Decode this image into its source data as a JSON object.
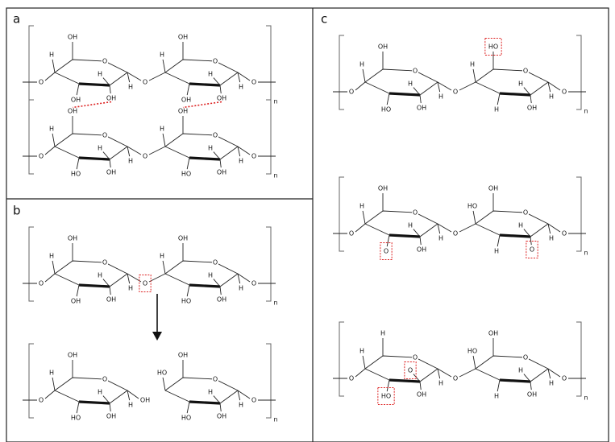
{
  "panels": [
    {
      "label": "a",
      "chains": [
        {
          "start": "O",
          "rings": [
            [
              "OH",
              "O",
              "H",
              "OH",
              "H",
              "OH",
              "H"
            ],
            [
              "OH",
              "O",
              "H",
              "OH",
              "H",
              "OH",
              "H"
            ]
          ],
          "link": "O",
          "end": "O",
          "n": "n"
        },
        {
          "start": "O",
          "rings": [
            [
              "OH",
              "O",
              "H",
              "HO",
              "H",
              "OH",
              "H"
            ],
            [
              "OH",
              "O",
              "H",
              "HO",
              "H",
              "OH",
              "H"
            ]
          ],
          "link": "O",
          "end": "O",
          "n": "n"
        }
      ]
    },
    {
      "label": "b",
      "chains": [
        {
          "start": "O",
          "rings": [
            [
              "OH",
              "O",
              "H",
              "OH",
              "H",
              "OH",
              "H"
            ],
            [
              "OH",
              "O",
              "H",
              "HO",
              "H",
              "OH",
              "H"
            ]
          ],
          "link": "O",
          "end": "O",
          "n": "n"
        },
        {
          "start": "O",
          "rings": [
            [
              "OH",
              "O",
              "H",
              "HO",
              "H",
              "OH",
              "H"
            ],
            [
              "OH",
              "O",
              "HO",
              "HO",
              "H",
              "OH",
              "H"
            ]
          ],
          "link": "OH",
          "end": "O",
          "n": "n"
        }
      ]
    },
    {
      "label": "c",
      "chains": [
        {
          "start": "O",
          "rings": [
            [
              "OH",
              "O",
              "H",
              "HO",
              "H",
              "OH",
              "H"
            ],
            [
              "HO",
              "O",
              "H",
              "H",
              "H",
              "OH",
              "H"
            ]
          ],
          "link": "O",
          "end": "O",
          "n": "n"
        },
        {
          "start": "O",
          "rings": [
            [
              "OH",
              "O",
              "H",
              "O",
              "H",
              "OH",
              "H"
            ],
            [
              "OH",
              "O",
              "HO",
              "H",
              "H",
              "O",
              "H"
            ]
          ],
          "link": "O",
          "end": "O",
          "n": "n"
        },
        {
          "start": "O",
          "rings": [
            [
              "H",
              "O",
              "H",
              "HO",
              "O",
              "OH",
              "H"
            ],
            [
              "OH",
              "O",
              "HO",
              "H",
              "H",
              "OH",
              "H"
            ]
          ],
          "link": "O",
          "end": "O",
          "n": "n"
        }
      ]
    }
  ]
}
